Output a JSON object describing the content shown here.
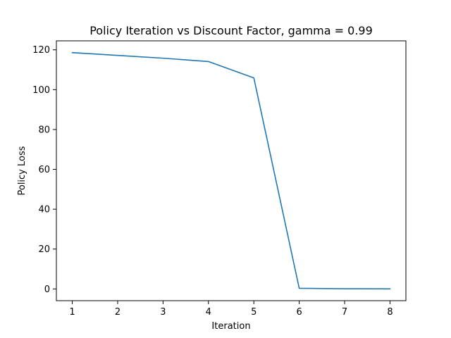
{
  "chart_data": {
    "type": "line",
    "title": "Policy Iteration vs Discount Factor, gamma = 0.99",
    "xlabel": "Iteration",
    "ylabel": "Policy Loss",
    "x": [
      1,
      2,
      3,
      4,
      5,
      6,
      7,
      8
    ],
    "series": [
      {
        "values": [
          118.6,
          117.2,
          115.8,
          114.1,
          105.9,
          0.3,
          0.1,
          0.05
        ],
        "color": "#1f77b4"
      }
    ],
    "xlim": [
      0.65,
      8.35
    ],
    "ylim": [
      -5.9,
      124.5
    ],
    "xticks": [
      1,
      2,
      3,
      4,
      5,
      6,
      7,
      8
    ],
    "yticks": [
      0,
      20,
      40,
      60,
      80,
      100,
      120
    ],
    "grid": false,
    "legend": "none"
  }
}
